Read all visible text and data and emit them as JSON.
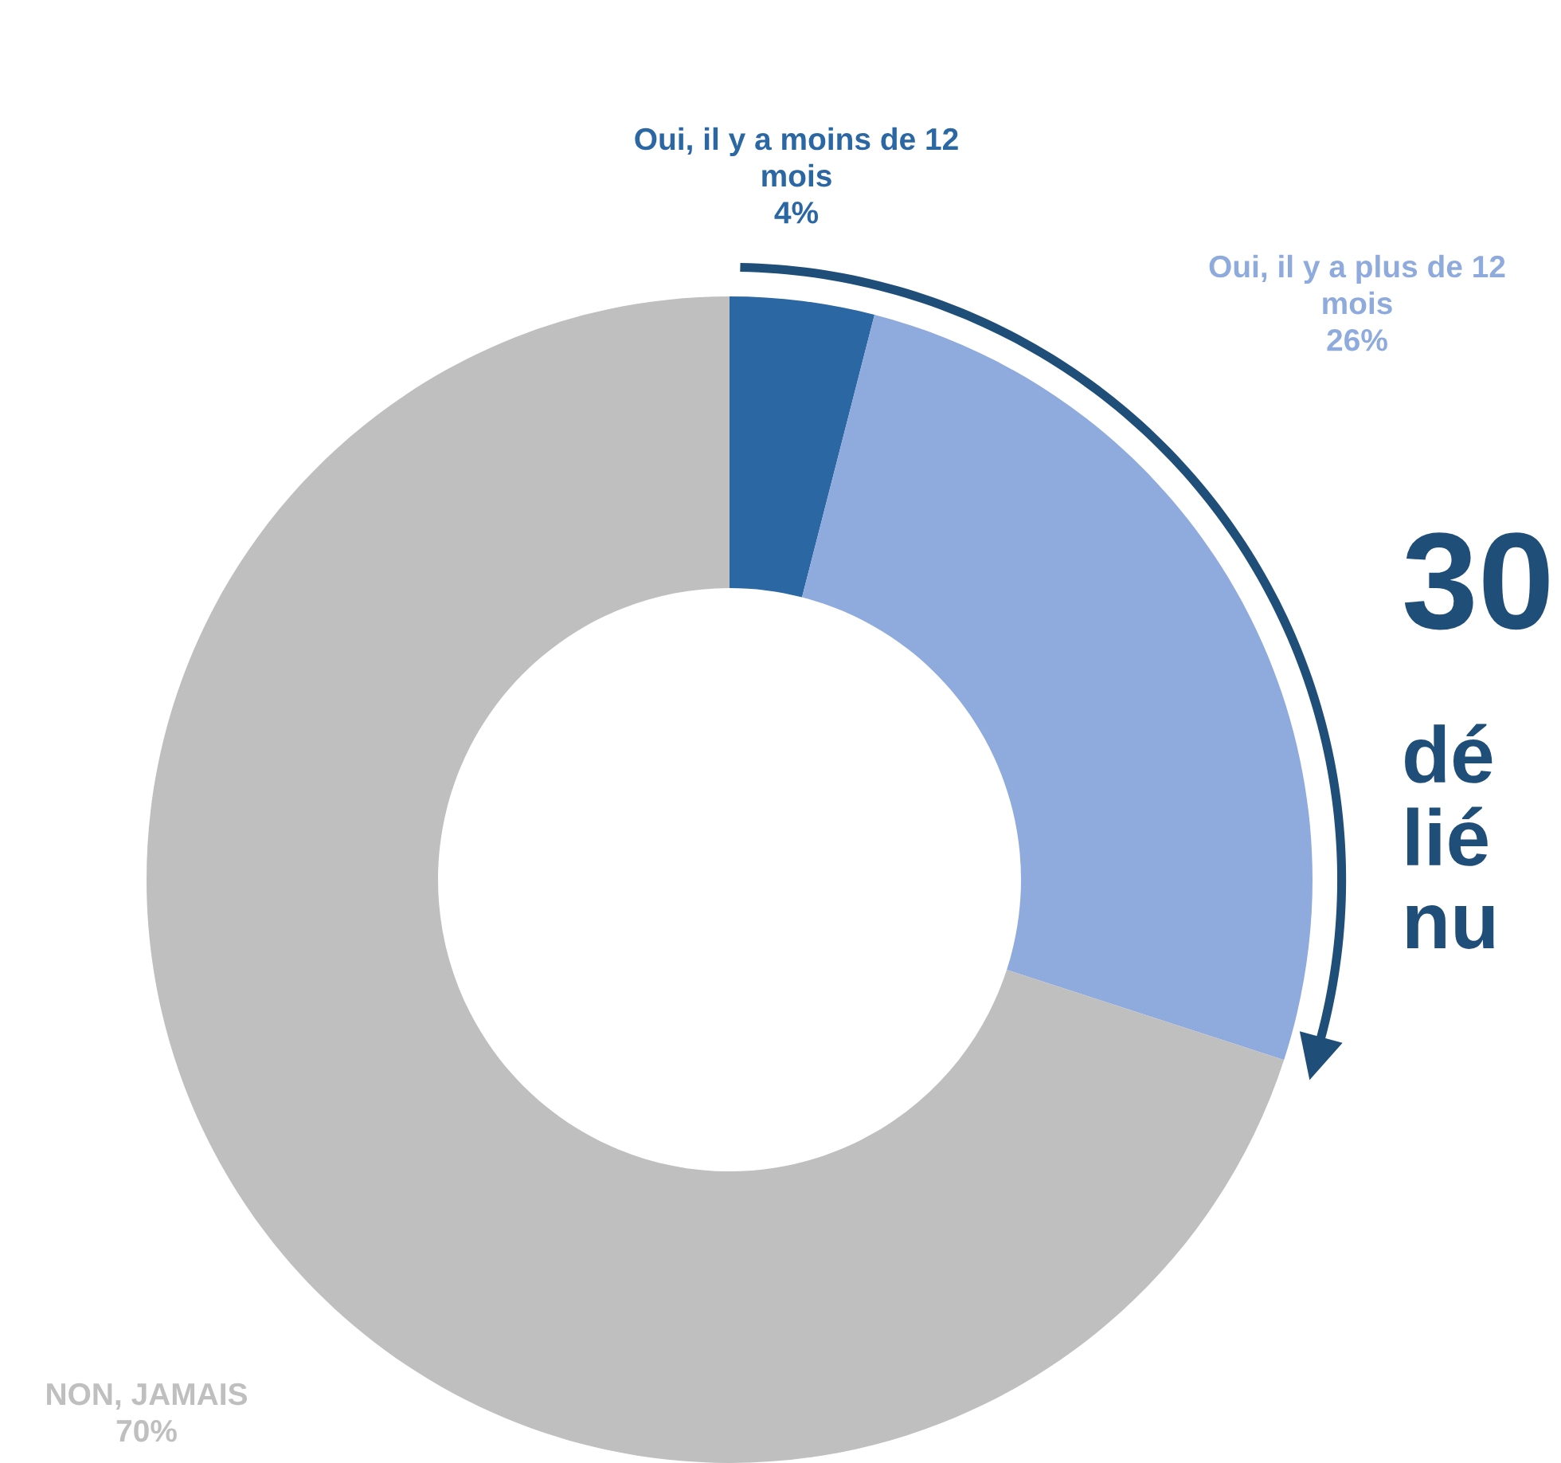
{
  "chart_data": {
    "type": "donut",
    "categories": [
      "Oui, il y a moins de 12\nmois",
      "Oui, il y a plus de 12\nmois",
      "NON, JAMAIS"
    ],
    "values": [
      4,
      26,
      70
    ],
    "colors": [
      "#2b67a3",
      "#8faadc",
      "#bfbfbf"
    ],
    "value_labels": [
      "4%",
      "26%",
      "70%"
    ],
    "annotations": [
      "30",
      "dé\nlié\nnu"
    ],
    "legend": false
  }
}
